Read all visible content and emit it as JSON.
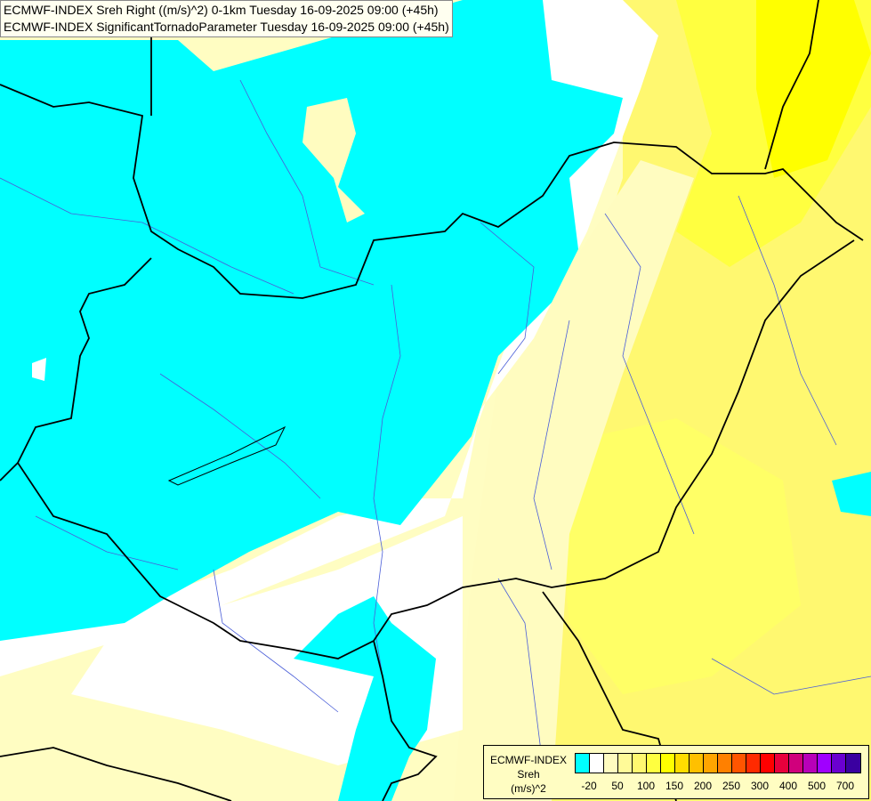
{
  "header": {
    "line1": "ECMWF-INDEX Sreh Right ((m/s)^2) 0-1km Tuesday 16-09-2025 09:00 (+45h)",
    "line2": "ECMWF-INDEX SignificantTornadoParameter Tuesday 16-09-2025 09:00 (+45h)"
  },
  "legend": {
    "title": "ECMWF-INDEX",
    "variable": "Sreh",
    "unit": "(m/s)^2",
    "colors": [
      "#00ffff",
      "#ffffff",
      "#fffcc0",
      "#fffa98",
      "#fff870",
      "#ffff40",
      "#ffff00",
      "#ffdd00",
      "#ffc000",
      "#ffa500",
      "#ff8000",
      "#ff5500",
      "#ff2a00",
      "#ff0000",
      "#e8003c",
      "#d0007c",
      "#b800b8",
      "#a000ff",
      "#6a00d0",
      "#3a00a0"
    ],
    "extra_color": "#000078",
    "tick_labels": [
      "-20",
      "50",
      "100",
      "150",
      "200",
      "250",
      "300",
      "400",
      "500",
      "700"
    ]
  }
}
